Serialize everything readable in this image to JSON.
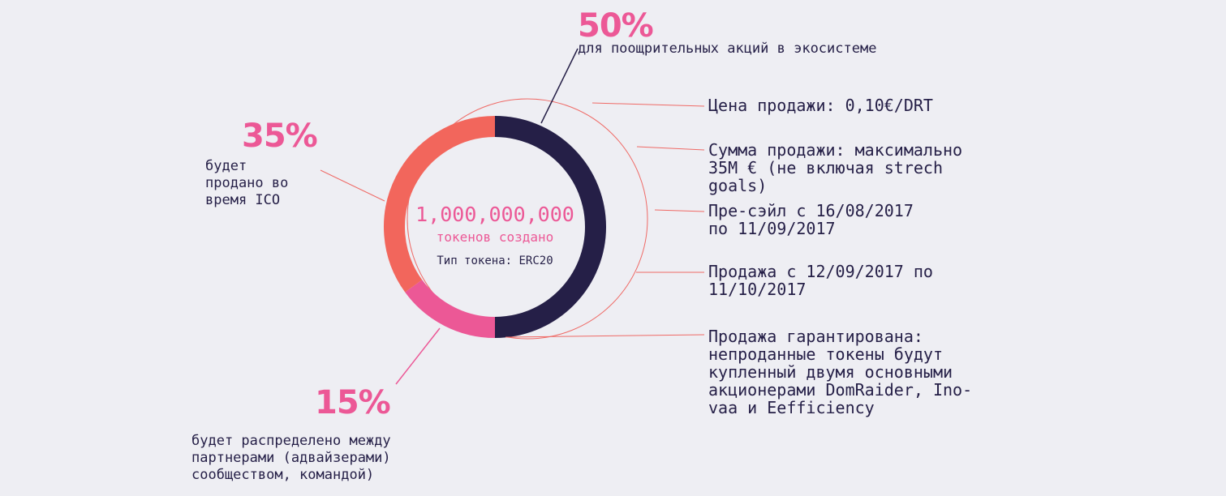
{
  "colors": {
    "navy": "#251f47",
    "salmon": "#f2665c",
    "pink": "#ec5896",
    "accent_line": "#ef6a66"
  },
  "chart_data": {
    "type": "pie",
    "style": "donut",
    "slices": [
      {
        "value": 50,
        "label": "50%",
        "description": "для поощрительных акций в экосистеме",
        "color": "#251f47"
      },
      {
        "value": 15,
        "label": "15%",
        "description": "будет распределено между\nпартнерами (адвайзерами)\nсообществом, командой)",
        "color": "#ec5896"
      },
      {
        "value": 35,
        "label": "35%",
        "description": "будет\nпродано во\nвремя ICO",
        "color": "#f2665c"
      }
    ],
    "center": {
      "total": "1,000,000,000",
      "unit": "токенов создано",
      "token_type": "Тип токена: ERC20"
    }
  },
  "info": [
    "Цена продажи: 0,10€/DRT",
    "Сумма продажи: максимально\n35M € (не включая strech\ngoals)",
    "Пре-сэйл с 16/08/2017\nпо 11/09/2017",
    "Продажа с 12/09/2017 по\n11/10/2017",
    "Продажа гарантирована:\nнепроданные токены будут\nкупленный двумя основными\nакционерами DomRaider, Ino-\nvaa и Eefficiency"
  ]
}
